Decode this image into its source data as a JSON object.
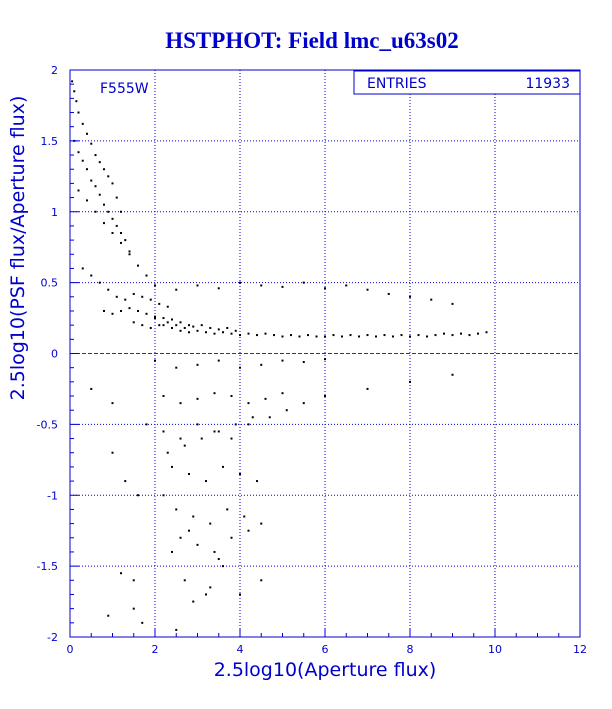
{
  "colors": {
    "title": "#0000cc",
    "axis": "#0000cc",
    "grid": "#0000cc",
    "points": "#000000",
    "reference_line": "#cc0000",
    "background": "#ffffff"
  },
  "stats_box": {
    "label": "ENTRIES",
    "value": "11933"
  },
  "chart_data": {
    "type": "scatter",
    "title": "HSTPHOT: Field lmc_u63s02",
    "annotation": "F555W",
    "xlabel": "2.5log10(Aperture flux)",
    "ylabel": "2.5log10(PSF flux/Aperture flux)",
    "xlim": [
      0,
      12
    ],
    "ylim": [
      -2,
      2
    ],
    "x_ticks": [
      0,
      2,
      4,
      6,
      8,
      10,
      12
    ],
    "y_ticks": [
      -2,
      -1.5,
      -1,
      -0.5,
      0,
      0.5,
      1,
      1.5,
      2
    ],
    "x_tick_labels": [
      "0",
      "2",
      "4",
      "6",
      "8",
      "10",
      "12"
    ],
    "y_tick_labels": [
      "-2",
      "-1.5",
      "-1",
      "-0.5",
      "0",
      "0.5",
      "1",
      "1.5",
      "2"
    ],
    "grid": true,
    "reference_line": {
      "y": 0,
      "style": "dashed"
    },
    "entries": 11933,
    "series": [
      {
        "x": [
          0.05,
          0.1,
          0.15,
          0.2,
          0.3,
          0.4,
          0.5,
          0.6,
          0.7,
          0.8,
          0.9,
          1.0,
          1.1,
          1.2,
          0.1,
          0.2,
          0.3,
          0.4,
          0.5,
          0.6,
          0.7,
          0.8,
          0.9,
          1.0,
          1.1,
          1.2,
          1.3,
          1.4,
          0.2,
          0.4,
          0.6,
          0.8,
          1.0,
          1.2,
          1.4,
          1.6,
          1.8,
          2.0,
          0.3,
          0.5,
          0.7,
          0.9,
          1.1,
          1.3,
          1.5,
          1.7,
          1.9,
          2.1,
          2.3,
          0.8,
          1.0,
          1.2,
          1.4,
          1.6,
          1.8,
          2.0,
          2.2,
          2.4,
          2.6,
          2.8,
          1.5,
          1.7,
          1.9,
          2.1,
          2.3,
          2.5,
          2.7,
          2.9,
          3.1,
          3.3,
          3.5,
          3.7,
          3.9,
          2.0,
          2.2,
          2.4,
          2.6,
          2.8,
          3.0,
          3.2,
          3.4,
          3.6,
          3.8,
          4.0,
          4.2,
          4.4,
          4.6,
          4.8,
          5.0,
          5.2,
          5.4,
          5.6,
          5.8,
          6.0,
          6.2,
          6.4,
          6.6,
          6.8,
          7.0,
          7.2,
          7.4,
          7.6,
          7.8,
          8.0,
          8.2,
          8.4,
          8.6,
          8.8,
          9.0,
          9.2,
          9.4,
          9.6,
          9.8,
          2.5,
          3.0,
          3.5,
          4.0,
          4.5,
          5.0,
          5.5,
          6.0,
          6.5,
          7.0,
          7.5,
          8.0,
          8.5,
          9.0,
          2.0,
          2.5,
          3.0,
          3.5,
          4.0,
          4.5,
          5.0,
          5.5,
          6.0,
          2.2,
          2.6,
          3.0,
          3.4,
          3.8,
          4.2,
          4.6,
          5.0,
          1.8,
          2.2,
          2.6,
          3.0,
          3.4,
          3.8,
          4.2,
          2.4,
          2.8,
          3.2,
          3.6,
          4.0,
          4.4,
          2.5,
          2.9,
          3.3,
          3.7,
          4.1,
          4.5,
          2.6,
          3.0,
          3.4,
          3.8,
          4.2,
          1.0,
          1.3,
          1.6,
          2.3,
          2.7,
          3.1,
          3.5,
          3.9,
          4.3,
          4.7,
          5.1,
          5.5,
          6.0,
          7.0,
          8.0,
          9.0,
          1.2,
          1.5,
          2.7,
          3.2,
          3.6,
          4.0,
          4.5,
          1.5,
          2.4,
          2.9,
          3.3,
          0.5,
          1.0,
          2.2,
          2.8,
          3.5,
          0.9,
          1.7,
          2.5
        ],
        "y": [
          1.92,
          1.85,
          1.78,
          1.7,
          1.62,
          1.55,
          1.48,
          1.4,
          1.35,
          1.3,
          1.25,
          1.2,
          1.1,
          1.0,
          1.5,
          1.42,
          1.36,
          1.3,
          1.22,
          1.18,
          1.12,
          1.05,
          1.0,
          0.95,
          0.9,
          0.85,
          0.8,
          0.72,
          1.15,
          1.08,
          1.0,
          0.92,
          0.85,
          0.78,
          0.7,
          0.62,
          0.55,
          0.48,
          0.6,
          0.55,
          0.5,
          0.45,
          0.4,
          0.38,
          0.42,
          0.4,
          0.38,
          0.35,
          0.33,
          0.3,
          0.28,
          0.3,
          0.32,
          0.3,
          0.28,
          0.26,
          0.25,
          0.24,
          0.22,
          0.2,
          0.22,
          0.2,
          0.18,
          0.2,
          0.22,
          0.2,
          0.18,
          0.19,
          0.2,
          0.18,
          0.17,
          0.18,
          0.16,
          0.25,
          0.2,
          0.18,
          0.16,
          0.15,
          0.16,
          0.15,
          0.14,
          0.15,
          0.14,
          0.13,
          0.14,
          0.13,
          0.14,
          0.13,
          0.12,
          0.13,
          0.12,
          0.13,
          0.12,
          0.12,
          0.13,
          0.12,
          0.13,
          0.12,
          0.13,
          0.12,
          0.13,
          0.12,
          0.13,
          0.12,
          0.13,
          0.12,
          0.13,
          0.14,
          0.13,
          0.14,
          0.13,
          0.14,
          0.15,
          0.45,
          0.48,
          0.46,
          0.5,
          0.48,
          0.47,
          0.5,
          0.46,
          0.48,
          0.45,
          0.42,
          0.4,
          0.38,
          0.35,
          -0.05,
          -0.1,
          -0.08,
          -0.05,
          -0.1,
          -0.08,
          -0.05,
          -0.06,
          -0.04,
          -0.3,
          -0.35,
          -0.32,
          -0.28,
          -0.3,
          -0.35,
          -0.32,
          -0.28,
          -0.5,
          -0.55,
          -0.6,
          -0.5,
          -0.55,
          -0.6,
          -0.5,
          -0.8,
          -0.85,
          -0.9,
          -0.8,
          -0.85,
          -0.9,
          -1.1,
          -1.15,
          -1.2,
          -1.1,
          -1.15,
          -1.2,
          -1.3,
          -1.35,
          -1.4,
          -1.3,
          -1.25,
          -0.7,
          -0.9,
          -1.0,
          -0.7,
          -0.65,
          -0.6,
          -0.55,
          -0.5,
          -0.45,
          -0.45,
          -0.4,
          -0.35,
          -0.3,
          -0.25,
          -0.2,
          -0.15,
          -1.55,
          -1.6,
          -1.6,
          -1.7,
          -1.5,
          -1.7,
          -1.6,
          -1.8,
          -1.4,
          -1.75,
          -1.65,
          -0.25,
          -0.35,
          -1.0,
          -1.25,
          -1.45,
          -1.85,
          -1.9,
          -1.95
        ]
      }
    ]
  }
}
